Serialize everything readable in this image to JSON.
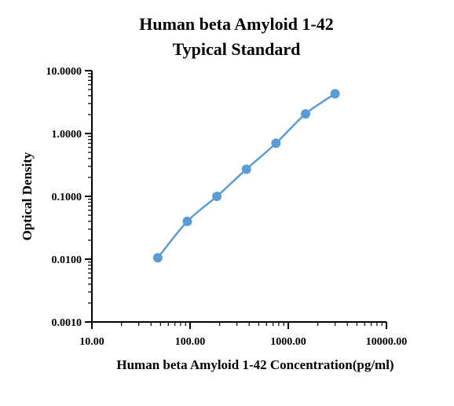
{
  "chart_data": {
    "type": "line",
    "title": [
      "Human beta Amyloid 1-42",
      "Typical Standard"
    ],
    "xlabel": "Human beta Amyloid 1-42 Concentration(pg/ml)",
    "ylabel": "Optical Density",
    "x_scale": "log",
    "y_scale": "log",
    "xlim": [
      10,
      10000
    ],
    "ylim": [
      0.001,
      10
    ],
    "x_ticks": [
      {
        "value": 10,
        "label": "10.00"
      },
      {
        "value": 100,
        "label": "100.00"
      },
      {
        "value": 1000,
        "label": "1000.00"
      },
      {
        "value": 10000,
        "label": "10000.00"
      }
    ],
    "y_ticks": [
      {
        "value": 10,
        "label": "10.0000"
      },
      {
        "value": 1,
        "label": "1.0000"
      },
      {
        "value": 0.1,
        "label": "0.1000"
      },
      {
        "value": 0.01,
        "label": "0.0100"
      },
      {
        "value": 0.001,
        "label": "0.0010"
      }
    ],
    "series": [
      {
        "color": "#5b9bd5",
        "x": [
          46.88,
          93.75,
          187.5,
          375,
          750,
          1500,
          3000
        ],
        "y": [
          0.0105,
          0.04,
          0.1,
          0.27,
          0.7,
          2.05,
          4.3
        ]
      }
    ],
    "grid": false,
    "legend": "none"
  }
}
